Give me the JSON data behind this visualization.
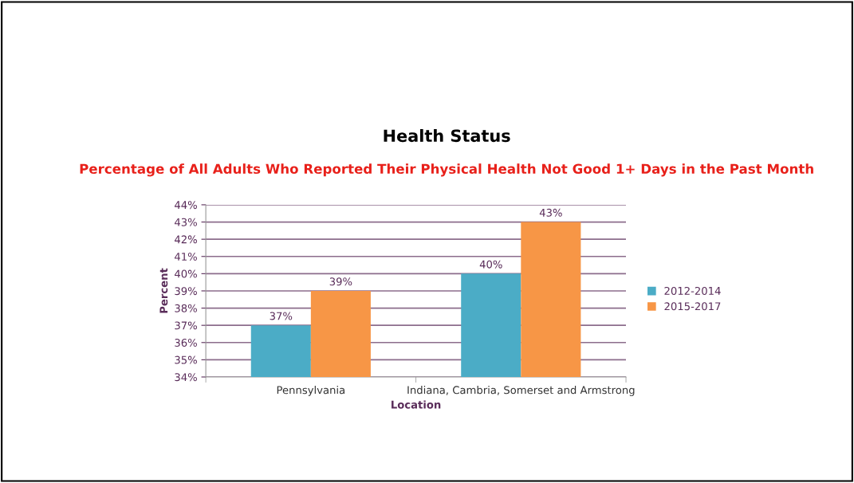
{
  "chart_data": {
    "type": "bar",
    "title": "Health Status",
    "subtitle": "Percentage of All Adults Who Reported Their Physical Health Not Good 1+ Days in the Past Month",
    "xlabel": "Location",
    "ylabel": "Percent",
    "categories": [
      "Pennsylvania",
      "Indiana, Cambria, Somerset and Armstrong"
    ],
    "series": [
      {
        "name": "2012-2014",
        "color": "#4bacc6",
        "values": [
          37,
          40
        ],
        "value_labels": [
          "37%",
          "40%"
        ]
      },
      {
        "name": "2015-2017",
        "color": "#f79646",
        "values": [
          39,
          43
        ],
        "value_labels": [
          "39%",
          "43%"
        ]
      }
    ],
    "ylim": [
      34,
      44
    ],
    "yticks": [
      {
        "value": 34,
        "label": "34%"
      },
      {
        "value": 35,
        "label": "35%"
      },
      {
        "value": 36,
        "label": "36%"
      },
      {
        "value": 37,
        "label": "37%"
      },
      {
        "value": 38,
        "label": "38%"
      },
      {
        "value": 39,
        "label": "39%"
      },
      {
        "value": 40,
        "label": "40%"
      },
      {
        "value": 41,
        "label": "41%"
      },
      {
        "value": 42,
        "label": "42%"
      },
      {
        "value": 43,
        "label": "43%"
      },
      {
        "value": 44,
        "label": "44%"
      }
    ],
    "grid": "y",
    "legend": "right"
  }
}
